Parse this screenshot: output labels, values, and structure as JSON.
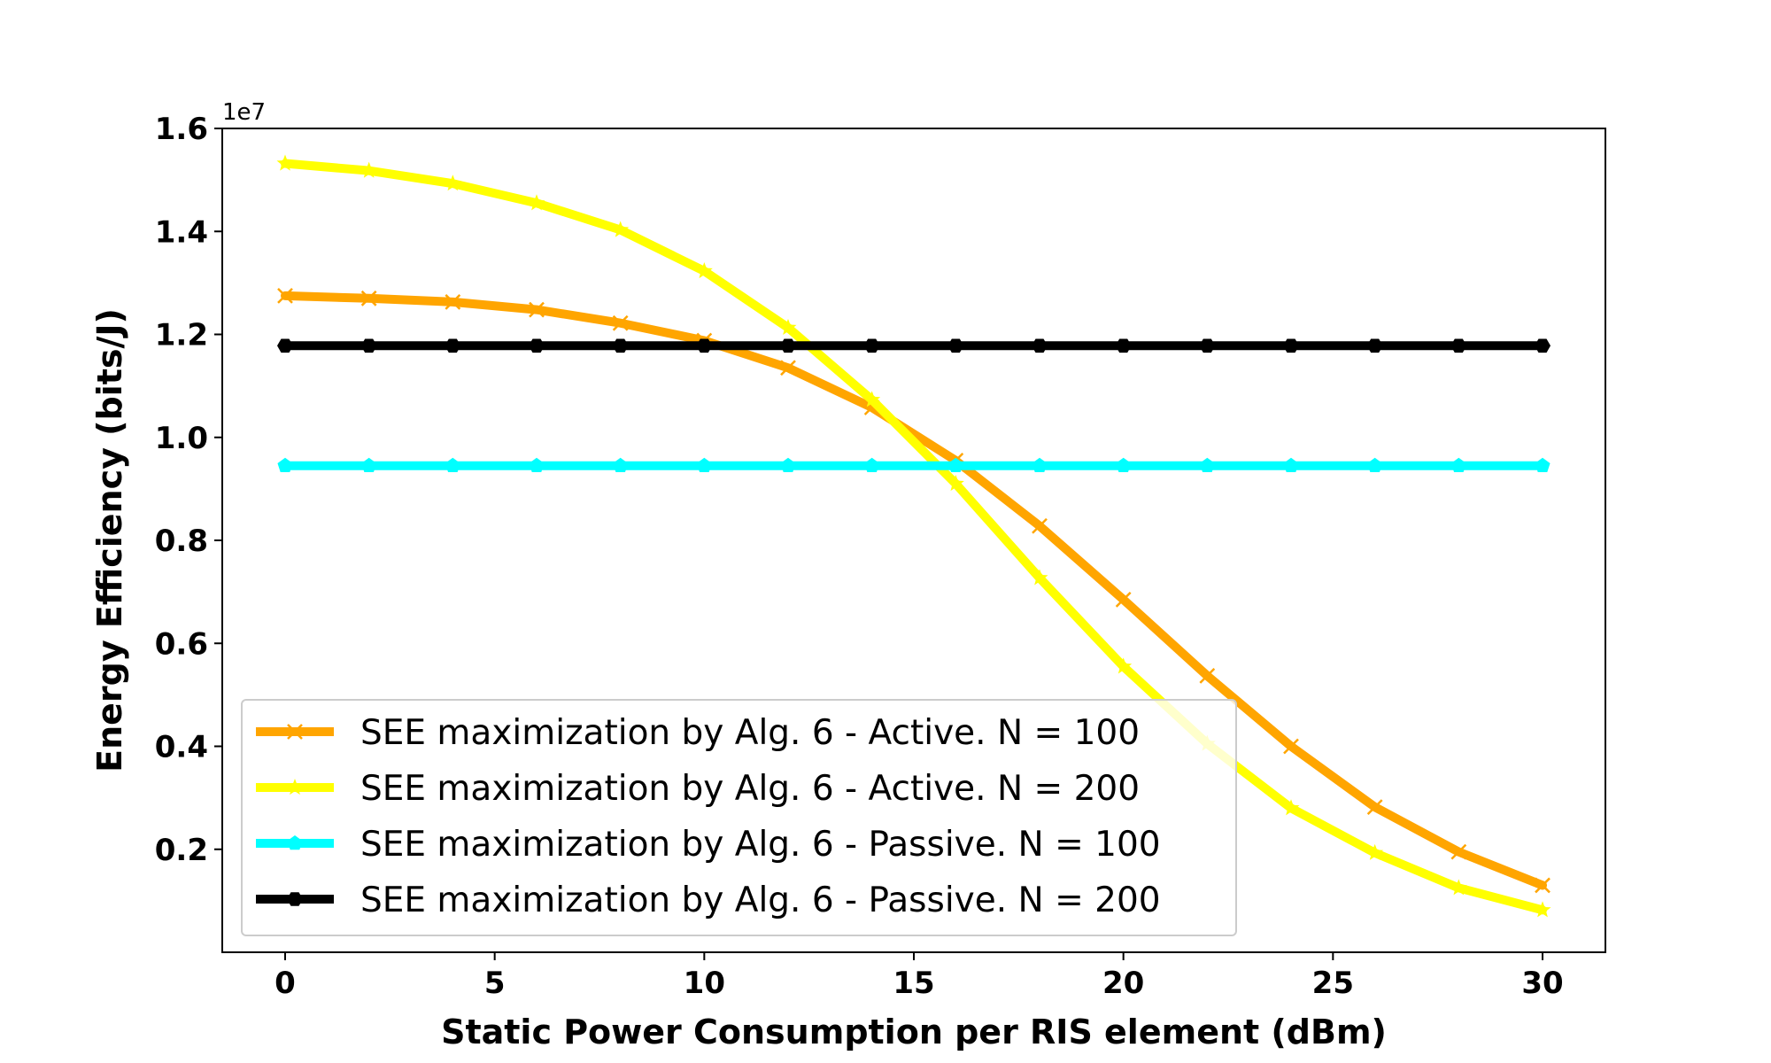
{
  "chart_data": {
    "type": "line",
    "title": "",
    "xlabel": "Static Power Consumption per RIS element (dBm)",
    "ylabel": "Energy Efficiency (bits/J)",
    "y_offset_label": "1e7",
    "xlim": [
      -1.5,
      31.5
    ],
    "ylim": [
      0.0,
      1.6
    ],
    "xticks": [
      0,
      5,
      10,
      15,
      20,
      25,
      30
    ],
    "xtick_labels": [
      "0",
      "5",
      "10",
      "15",
      "20",
      "25",
      "30"
    ],
    "yticks": [
      0.2,
      0.4,
      0.6,
      0.8,
      1.0,
      1.2,
      1.4,
      1.6
    ],
    "ytick_labels": [
      "0.2",
      "0.4",
      "0.6",
      "0.8",
      "1.0",
      "1.2",
      "1.4",
      "1.6"
    ],
    "grid": false,
    "legend_position": "lower-left",
    "x": [
      0,
      2,
      4,
      6,
      8,
      10,
      12,
      14,
      16,
      18,
      20,
      22,
      24,
      26,
      28,
      30
    ],
    "series": [
      {
        "name": "SEE maximization by Alg. 6 - Active. N = 100",
        "color": "#ffa500",
        "marker": "x",
        "values": [
          1.275,
          1.27,
          1.263,
          1.248,
          1.222,
          1.188,
          1.135,
          1.058,
          0.955,
          0.828,
          0.685,
          0.537,
          0.4,
          0.282,
          0.195,
          0.13
        ]
      },
      {
        "name": "SEE maximization by Alg. 6 - Active. N = 200",
        "color": "#ffff00",
        "marker": "star",
        "values": [
          1.532,
          1.518,
          1.493,
          1.455,
          1.403,
          1.323,
          1.213,
          1.073,
          0.91,
          0.727,
          0.555,
          0.405,
          0.28,
          0.193,
          0.125,
          0.082
        ]
      },
      {
        "name": "SEE maximization by Alg. 6 - Passive. N = 100",
        "color": "#00ffff",
        "marker": "pentagon",
        "values": [
          0.945,
          0.945,
          0.945,
          0.945,
          0.945,
          0.945,
          0.945,
          0.945,
          0.945,
          0.945,
          0.945,
          0.945,
          0.945,
          0.945,
          0.945,
          0.945
        ]
      },
      {
        "name": "SEE maximization by Alg. 6 - Passive. N = 200",
        "color": "#000000",
        "marker": "hexagon",
        "values": [
          1.178,
          1.178,
          1.178,
          1.178,
          1.178,
          1.178,
          1.178,
          1.178,
          1.178,
          1.178,
          1.178,
          1.178,
          1.178,
          1.178,
          1.178,
          1.178
        ]
      }
    ]
  }
}
